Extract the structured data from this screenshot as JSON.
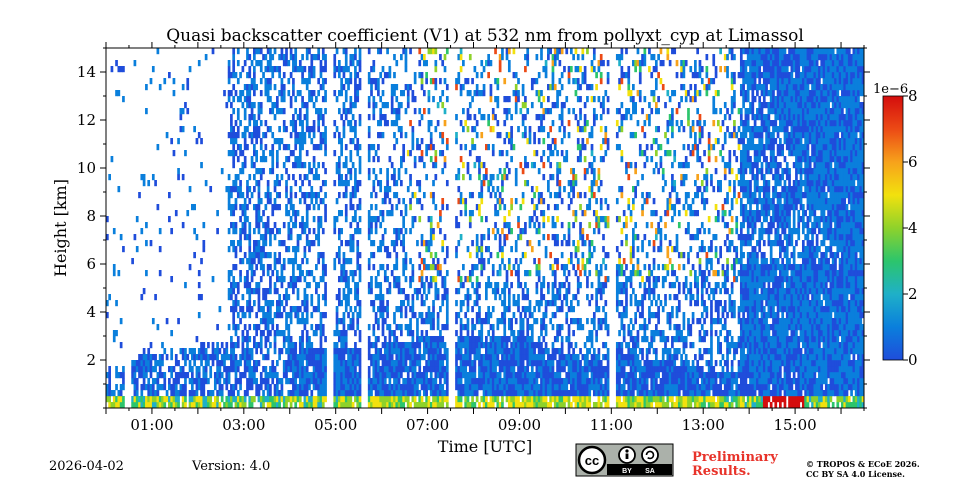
{
  "chart_data": {
    "type": "heatmap",
    "title": "Quasi backscatter coefficient (V1) at 532 nm from pollyxt_cyp at Limassol",
    "xlabel": "Time [UTC]",
    "ylabel": "Height [km]",
    "xlim": [
      0,
      16.5
    ],
    "ylim": [
      0,
      15
    ],
    "x_ticks": [
      1,
      3,
      5,
      7,
      9,
      11,
      13,
      15
    ],
    "x_tick_labels": [
      "01:00",
      "03:00",
      "05:00",
      "07:00",
      "09:00",
      "11:00",
      "13:00",
      "15:00"
    ],
    "y_ticks": [
      2,
      4,
      6,
      8,
      10,
      12,
      14
    ],
    "y_tick_labels": [
      "2",
      "4",
      "6",
      "8",
      "10",
      "12",
      "14"
    ],
    "colorbar": {
      "min": 0,
      "max": 8,
      "ticks": [
        0,
        2,
        4,
        6,
        8
      ],
      "tick_labels": [
        "0",
        "2",
        "4",
        "6",
        "8"
      ],
      "scale_label": "1e−6",
      "colors": [
        "#1f4ddb",
        "#0a7fdc",
        "#1fb0c8",
        "#2cc56c",
        "#8ed22b",
        "#f2e10e",
        "#f7a21b",
        "#ec4a15",
        "#d40d0d"
      ]
    },
    "features": {
      "boundary_layer_top_km": [
        [
          0.0,
          1.5
        ],
        [
          1.0,
          2.2
        ],
        [
          2.0,
          2.5
        ],
        [
          3.0,
          2.6
        ],
        [
          4.0,
          2.5
        ],
        [
          5.0,
          2.4
        ],
        [
          6.0,
          2.6
        ],
        [
          7.0,
          2.8
        ],
        [
          8.0,
          2.9
        ],
        [
          9.0,
          2.8
        ],
        [
          10.0,
          2.2
        ],
        [
          11.0,
          2.2
        ],
        [
          12.0,
          1.9
        ],
        [
          13.0,
          1.5
        ],
        [
          14.0,
          1.3
        ],
        [
          15.0,
          1.1
        ],
        [
          16.5,
          1.0
        ]
      ],
      "dense_blue_after_hour": 13.8,
      "data_gaps_hours": [
        0.45,
        4.85,
        5.6,
        7.5,
        11.0
      ]
    }
  },
  "footer": {
    "date": "2026-04-02",
    "version": "Version: 4.0",
    "prelim_line1": "Preliminary",
    "prelim_line2": "Results.",
    "copyright_line1": "© TROPOS & ECoE 2026.",
    "copyright_line2": "CC BY SA 4.0 License.",
    "cc_by": "BY",
    "cc_sa": "SA"
  }
}
